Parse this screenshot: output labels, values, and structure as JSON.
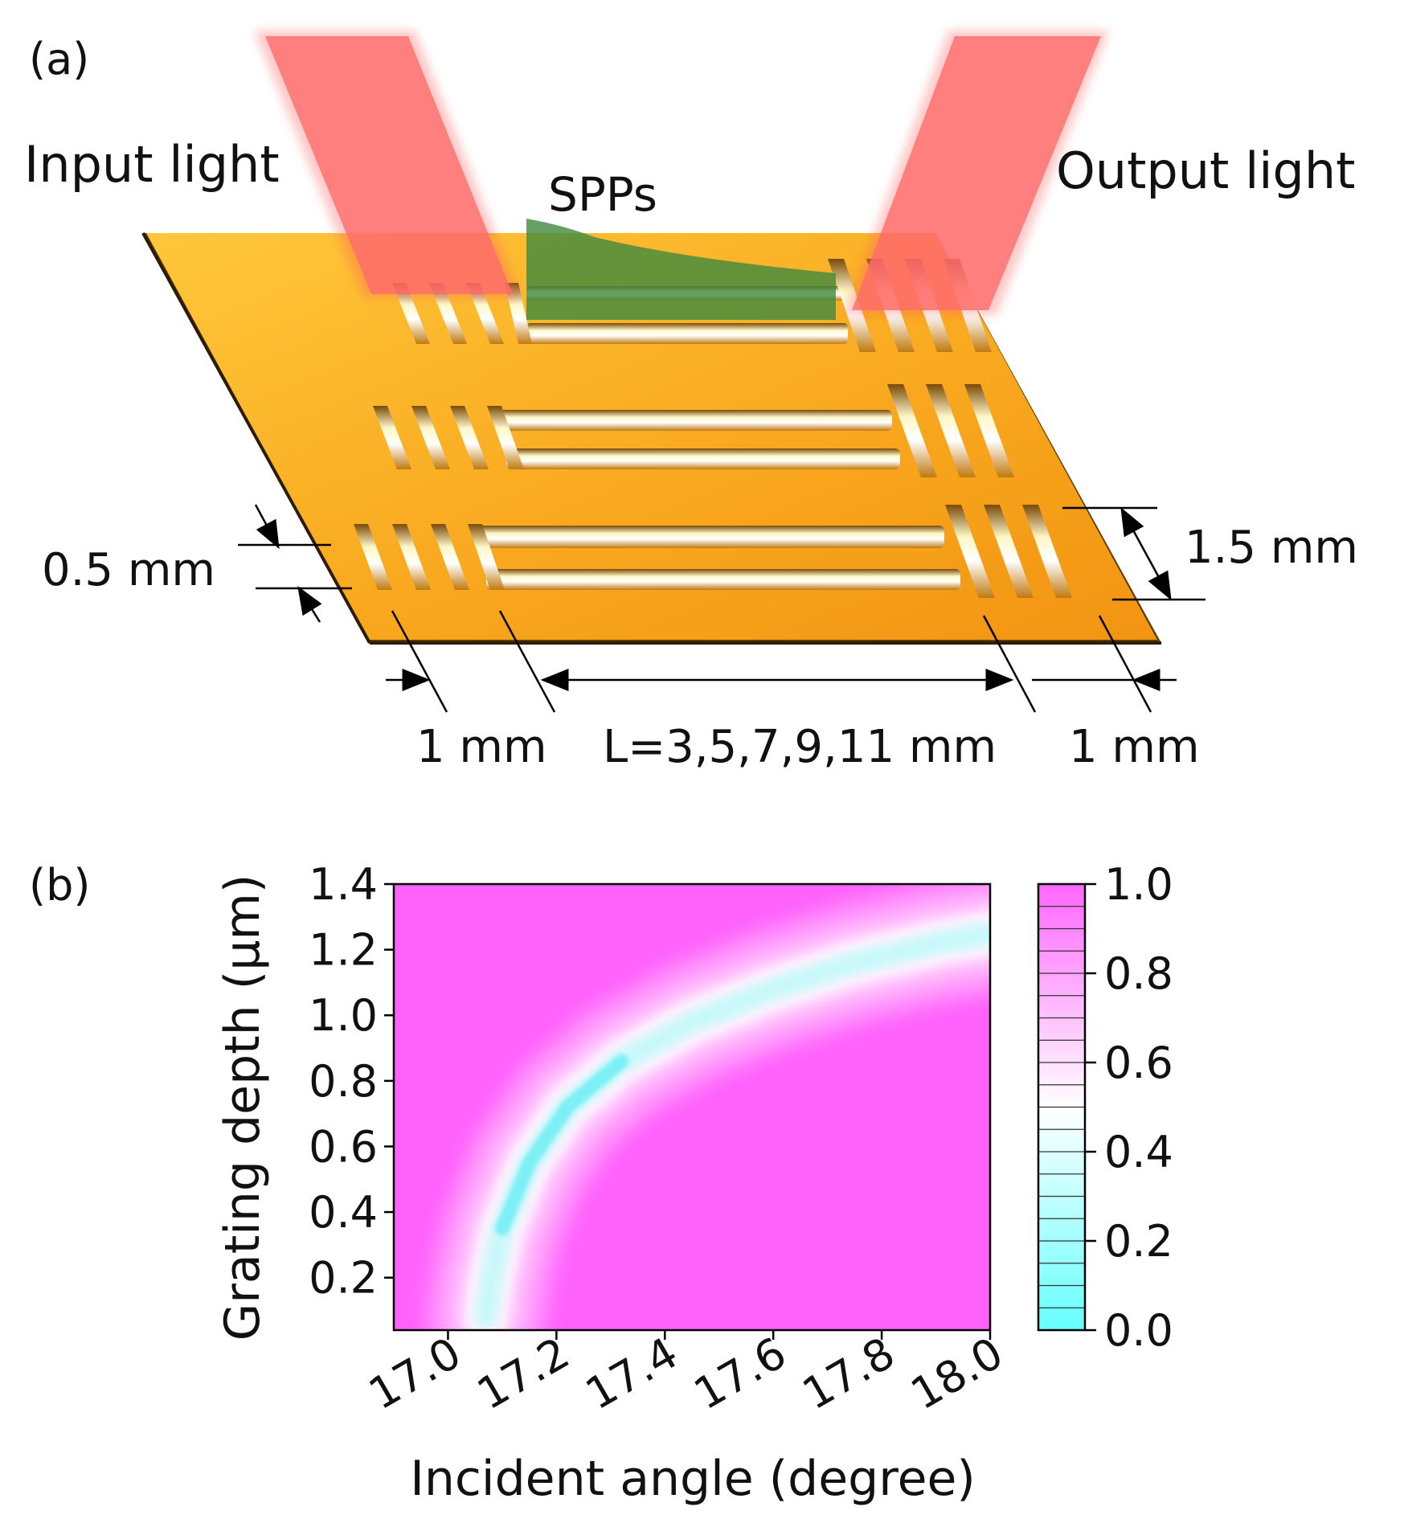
{
  "panel_a": {
    "label": "(a)",
    "input_light": "Input light",
    "output_light": "Output light",
    "spps": "SPPs",
    "dim_width": "0.5 mm",
    "dim_spacing": "1.5 mm",
    "dim_grating_left": "1 mm",
    "dim_length": "L=3,5,7,9,11 mm",
    "dim_grating_right": "1 mm",
    "colors": {
      "gold": "#f7a51e",
      "beam": "#ff6f6f",
      "spp": "#4f8d4f"
    }
  },
  "panel_b": {
    "label": "(b)",
    "chart_data": {
      "type": "heatmap",
      "xlabel": "Incident angle (degree)",
      "ylabel": "Grating depth (μm)",
      "xlim": [
        16.9,
        18.0
      ],
      "ylim": [
        0.04,
        1.4
      ],
      "x_ticks": [
        17.0,
        17.2,
        17.4,
        17.6,
        17.8,
        18.0
      ],
      "x_tick_labels": [
        "17.0",
        "17.2",
        "17.4",
        "17.6",
        "17.8",
        "18.0"
      ],
      "y_ticks": [
        0.2,
        0.4,
        0.6,
        0.8,
        1.0,
        1.2,
        1.4
      ],
      "y_tick_labels": [
        "0.2",
        "0.4",
        "0.6",
        "0.8",
        "1.0",
        "1.2",
        "1.4"
      ],
      "colorbar": {
        "range": [
          0.0,
          1.0
        ],
        "ticks": [
          0.0,
          0.2,
          0.4,
          0.6,
          0.8,
          1.0
        ],
        "tick_labels": [
          "0.0",
          "0.2",
          "0.4",
          "0.6",
          "0.8",
          "1.0"
        ],
        "levels": 20,
        "colormap": [
          "#66ffff",
          "#ffffff",
          "#ff66ff"
        ]
      },
      "resonance_minimum": {
        "x": [
          17.07,
          17.08,
          17.1,
          17.15,
          17.22,
          17.32,
          17.45,
          17.6,
          17.75,
          17.9,
          18.0
        ],
        "y": [
          0.08,
          0.2,
          0.35,
          0.55,
          0.72,
          0.86,
          0.98,
          1.08,
          1.16,
          1.22,
          1.25
        ],
        "min_value": [
          0.45,
          0.2,
          0.12,
          0.05,
          0.05,
          0.12,
          0.25,
          0.32,
          0.38,
          0.45,
          0.5
        ]
      }
    }
  }
}
